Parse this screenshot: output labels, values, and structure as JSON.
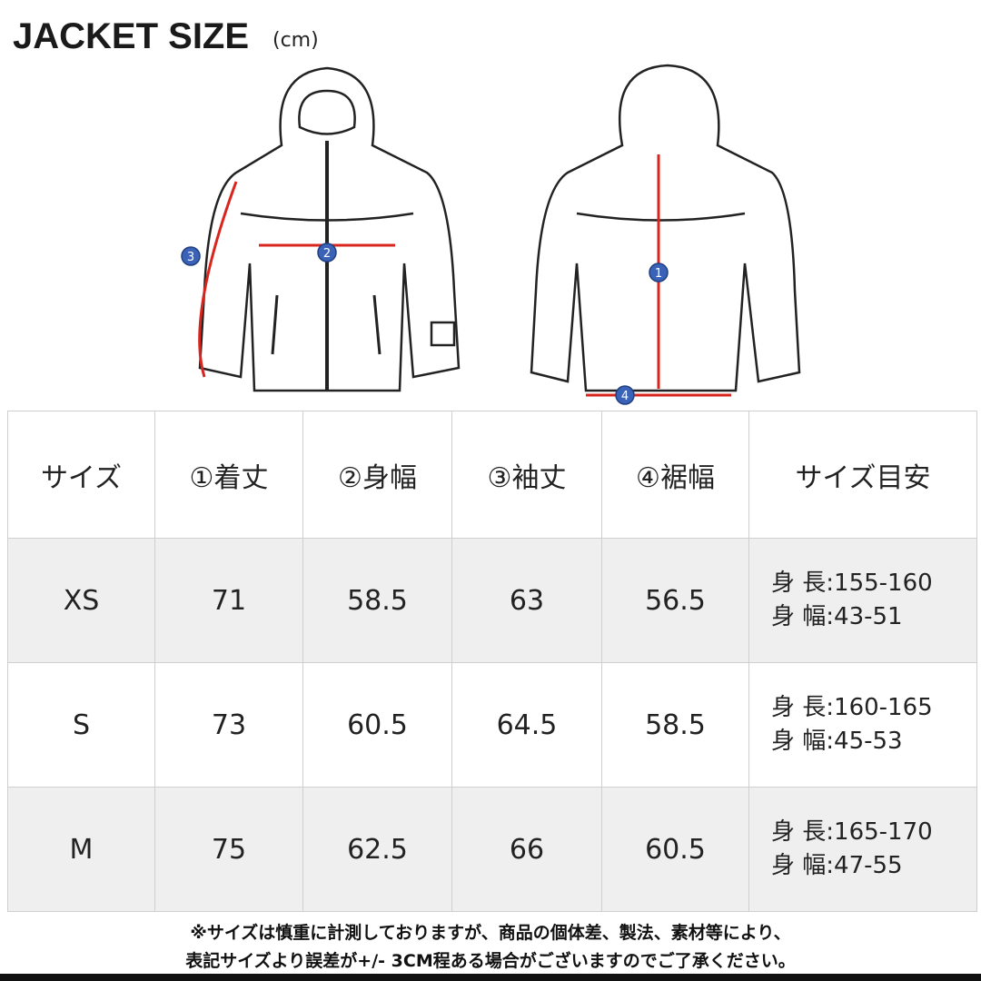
{
  "title": "JACKET SIZE",
  "unit": "(cm)",
  "diagram": {
    "markers": [
      "1",
      "2",
      "3",
      "4"
    ],
    "arrow_color": "#d8261f",
    "marker_color": "#3a63b8"
  },
  "table": {
    "headers": [
      "サイズ",
      "①着丈",
      "②身幅",
      "③袖丈",
      "④裾幅",
      "サイズ目安"
    ],
    "rows": [
      {
        "size": "XS",
        "length": "71",
        "width": "58.5",
        "sleeve": "63",
        "hem": "56.5",
        "height": "身 長:155-160",
        "bust": "身 幅:43-51"
      },
      {
        "size": "S",
        "length": "73",
        "width": "60.5",
        "sleeve": "64.5",
        "hem": "58.5",
        "height": "身 長:160-165",
        "bust": "身 幅:45-53"
      },
      {
        "size": "M",
        "length": "75",
        "width": "62.5",
        "sleeve": "66",
        "hem": "60.5",
        "height": "身 長:165-170",
        "bust": "身 幅:47-55"
      }
    ]
  },
  "note": {
    "line1": "※サイズは慎重に計測しておりますが、商品の個体差、製法、素材等により、",
    "line2": "表記サイズより誤差が+/- 3CM程ある場合がございますのでご了承ください。"
  }
}
